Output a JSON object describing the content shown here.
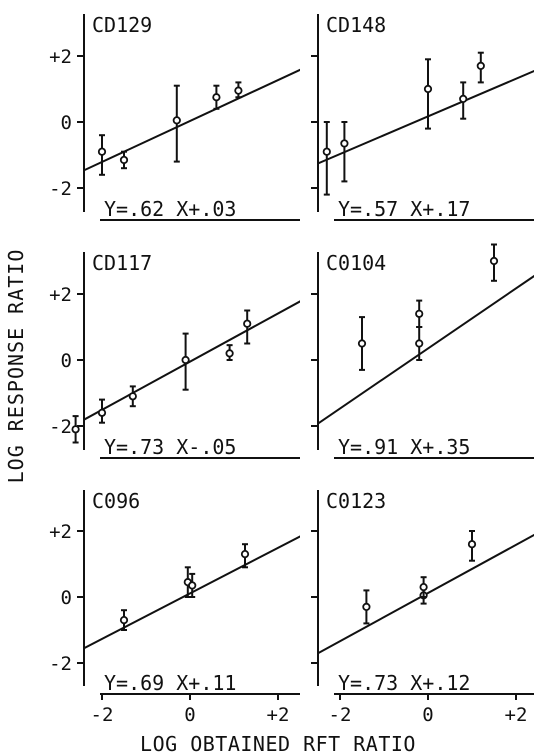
{
  "figure": {
    "ylabel": "LOG RESPONSE RATIO",
    "xlabel": "LOG OBTAINED RFT RATIO",
    "ink": "#111111"
  },
  "chart_data": [
    {
      "type": "scatter",
      "title": "CD129",
      "equation": "Y=.62 X+.03",
      "slope": 0.62,
      "intercept": 0.03,
      "xlim": [
        -3,
        3
      ],
      "ylim": [
        -2.6,
        2.8
      ],
      "yticks": [
        {
          "v": 2,
          "label": "+2"
        },
        {
          "v": 0,
          "label": "0"
        },
        {
          "v": -2,
          "label": "-2"
        }
      ],
      "points": [
        {
          "x": -2.0,
          "y": -0.9,
          "lo": -1.6,
          "hi": -0.4
        },
        {
          "x": -1.5,
          "y": -1.15,
          "lo": -1.4,
          "hi": -0.9
        },
        {
          "x": -0.3,
          "y": 0.05,
          "lo": -1.2,
          "hi": 1.1
        },
        {
          "x": 0.6,
          "y": 0.75,
          "lo": 0.4,
          "hi": 1.1
        },
        {
          "x": 1.1,
          "y": 0.95,
          "lo": 0.75,
          "hi": 1.2
        }
      ]
    },
    {
      "type": "scatter",
      "title": "CD148",
      "equation": "Y=.57 X+.17",
      "slope": 0.57,
      "intercept": 0.17,
      "xlim": [
        -3,
        3
      ],
      "ylim": [
        -2.6,
        2.8
      ],
      "yticks": [
        {
          "v": 2,
          "label": ""
        },
        {
          "v": 0,
          "label": ""
        },
        {
          "v": -2,
          "label": ""
        }
      ],
      "points": [
        {
          "x": -2.3,
          "y": -0.9,
          "lo": -2.2,
          "hi": 0.0
        },
        {
          "x": -1.9,
          "y": -0.65,
          "lo": -1.8,
          "hi": 0.0
        },
        {
          "x": 0.0,
          "y": 1.0,
          "lo": -0.2,
          "hi": 1.9
        },
        {
          "x": 0.8,
          "y": 0.7,
          "lo": 0.1,
          "hi": 1.2
        },
        {
          "x": 1.2,
          "y": 1.7,
          "lo": 1.2,
          "hi": 2.1
        }
      ]
    },
    {
      "type": "scatter",
      "title": "CD117",
      "equation": "Y=.73 X-.05",
      "slope": 0.73,
      "intercept": -0.05,
      "xlim": [
        -3,
        3
      ],
      "ylim": [
        -2.6,
        2.8
      ],
      "yticks": [
        {
          "v": 2,
          "label": "+2"
        },
        {
          "v": 0,
          "label": "0"
        },
        {
          "v": -2,
          "label": "-2"
        }
      ],
      "points": [
        {
          "x": -2.6,
          "y": -2.1,
          "lo": -2.5,
          "hi": -1.7
        },
        {
          "x": -2.0,
          "y": -1.6,
          "lo": -1.9,
          "hi": -1.2
        },
        {
          "x": -1.3,
          "y": -1.1,
          "lo": -1.4,
          "hi": -0.8
        },
        {
          "x": -0.1,
          "y": 0.0,
          "lo": -0.9,
          "hi": 0.8
        },
        {
          "x": 0.9,
          "y": 0.2,
          "lo": 0.0,
          "hi": 0.45
        },
        {
          "x": 1.3,
          "y": 1.1,
          "lo": 0.5,
          "hi": 1.5
        }
      ]
    },
    {
      "type": "scatter",
      "title": "C0104",
      "equation": "Y=.91 X+.35",
      "slope": 0.91,
      "intercept": 0.35,
      "xlim": [
        -3,
        3
      ],
      "ylim": [
        -2.6,
        2.8
      ],
      "yticks": [
        {
          "v": 2,
          "label": ""
        },
        {
          "v": 0,
          "label": ""
        },
        {
          "v": -2,
          "label": ""
        }
      ],
      "points": [
        {
          "x": -1.5,
          "y": 0.5,
          "lo": -0.3,
          "hi": 1.3
        },
        {
          "x": -0.2,
          "y": 0.5,
          "lo": 0.0,
          "hi": 1.0
        },
        {
          "x": -0.2,
          "y": 1.4,
          "lo": 1.0,
          "hi": 1.8
        },
        {
          "x": 1.5,
          "y": 3.0,
          "lo": 2.4,
          "hi": 3.5
        }
      ]
    },
    {
      "type": "scatter",
      "title": "C096",
      "equation": "Y=.69 X+.11",
      "slope": 0.69,
      "intercept": 0.11,
      "xlim": [
        -3,
        3
      ],
      "ylim": [
        -2.6,
        2.8
      ],
      "yticks": [
        {
          "v": 2,
          "label": "+2"
        },
        {
          "v": 0,
          "label": "0"
        },
        {
          "v": -2,
          "label": "-2"
        }
      ],
      "xticks": [
        {
          "v": -2,
          "label": "-2"
        },
        {
          "v": 0,
          "label": "0"
        },
        {
          "v": 2,
          "label": "+2"
        }
      ],
      "points": [
        {
          "x": -1.5,
          "y": -0.7,
          "lo": -1.0,
          "hi": -0.4
        },
        {
          "x": -0.05,
          "y": 0.45,
          "lo": 0.0,
          "hi": 0.9
        },
        {
          "x": 0.05,
          "y": 0.35,
          "lo": 0.0,
          "hi": 0.7
        },
        {
          "x": 1.25,
          "y": 1.3,
          "lo": 0.9,
          "hi": 1.6
        }
      ]
    },
    {
      "type": "scatter",
      "title": "C0123",
      "equation": "Y=.73 X+.12",
      "slope": 0.73,
      "intercept": 0.12,
      "xlim": [
        -3,
        3
      ],
      "ylim": [
        -2.6,
        2.8
      ],
      "yticks": [
        {
          "v": 2,
          "label": ""
        },
        {
          "v": 0,
          "label": ""
        },
        {
          "v": -2,
          "label": ""
        }
      ],
      "xticks": [
        {
          "v": -2,
          "label": "-2"
        },
        {
          "v": 0,
          "label": "0"
        },
        {
          "v": 2,
          "label": "+2"
        }
      ],
      "points": [
        {
          "x": -1.4,
          "y": -0.3,
          "lo": -0.8,
          "hi": 0.2
        },
        {
          "x": -0.1,
          "y": 0.05,
          "lo": -0.2,
          "hi": 0.3
        },
        {
          "x": -0.1,
          "y": 0.3,
          "lo": 0.0,
          "hi": 0.6
        },
        {
          "x": 1.0,
          "y": 1.6,
          "lo": 1.1,
          "hi": 2.0
        }
      ]
    }
  ]
}
